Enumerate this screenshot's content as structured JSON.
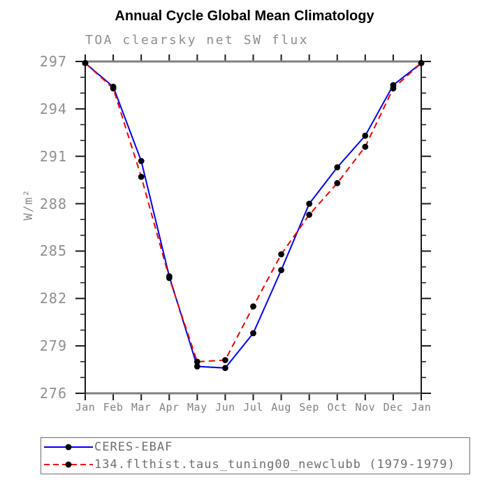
{
  "page": {
    "title": "Annual Cycle Global Mean Climatology",
    "subtitle": "TOA clearsky net SW flux"
  },
  "chart_data": {
    "type": "line",
    "title": "Annual Cycle Global Mean Climatology",
    "subtitle": "TOA clearsky net SW flux",
    "xlabel": "",
    "ylabel": "W/m²",
    "x_categories": [
      "Jan",
      "Feb",
      "Mar",
      "Apr",
      "May",
      "Jun",
      "Jul",
      "Aug",
      "Sep",
      "Oct",
      "Nov",
      "Dec",
      "Jan"
    ],
    "ylim": [
      276,
      297
    ],
    "y_major_ticks": [
      297,
      294,
      291,
      288,
      285,
      282,
      279,
      276
    ],
    "y_minor_step": 1,
    "grid": false,
    "legend_position": "bottom-left",
    "series": [
      {
        "name": "CERES-EBAF",
        "line_style": "solid",
        "color": "#0000ee",
        "marker": "black-dot",
        "values": [
          296.9,
          295.4,
          290.7,
          283.4,
          277.7,
          277.6,
          279.8,
          283.8,
          288.0,
          290.3,
          292.3,
          295.5,
          296.9
        ]
      },
      {
        "name": "134.flthist.taus_tuning00_newclubb (1979-1979)",
        "line_style": "dashed",
        "color": "#ee0000",
        "marker": "black-dot",
        "values": [
          296.9,
          295.3,
          289.7,
          283.3,
          278.0,
          278.1,
          281.5,
          284.8,
          287.3,
          289.3,
          291.6,
          295.3,
          296.9
        ]
      }
    ],
    "style": {
      "marker_color": "#000000",
      "frame_horizontal_color": "#808080",
      "frame_vertical_color": "#1a1a1a",
      "tick_color": "#1a1a1a",
      "label_gray": "#8d8d8d"
    }
  }
}
